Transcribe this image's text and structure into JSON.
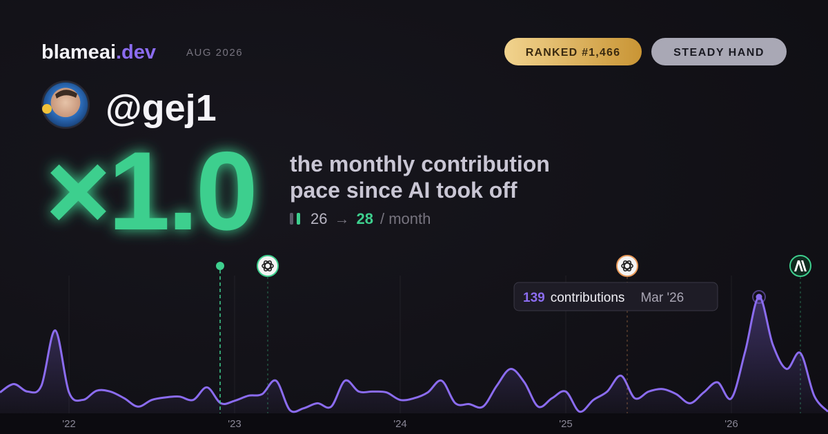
{
  "header": {
    "brand": "blameai",
    "brand_suffix": ".dev",
    "period": "AUG 2026",
    "rank_badge": "RANKED #1,466",
    "style_badge": "STEADY HAND",
    "handle": "@gej1"
  },
  "stat": {
    "multiplier": "×1.0",
    "caption_line1": "the monthly contribution",
    "caption_line2": "pace since AI took off",
    "before": 26,
    "arrow": "→",
    "after": 28,
    "unit": "/ month"
  },
  "chart_data": {
    "type": "line",
    "categories": [
      null,
      null,
      null,
      null,
      null,
      "'22",
      null,
      null,
      null,
      null,
      null,
      null,
      null,
      null,
      null,
      null,
      null,
      "'23",
      null,
      null,
      null,
      null,
      null,
      null,
      null,
      null,
      null,
      null,
      null,
      "'24",
      null,
      null,
      null,
      null,
      null,
      null,
      null,
      null,
      null,
      null,
      null,
      "'25",
      null,
      null,
      null,
      null,
      null,
      null,
      null,
      null,
      null,
      null,
      null,
      "'26",
      null,
      null,
      null,
      null,
      null,
      null,
      null
    ],
    "series": [
      {
        "name": "contributions",
        "color": "#8b6cf0",
        "values": [
          25,
          35,
          26,
          33,
          99,
          25,
          16,
          27,
          26,
          18,
          8,
          16,
          19,
          20,
          16,
          31,
          12,
          15,
          21,
          23,
          39,
          4,
          6,
          12,
          8,
          39,
          26,
          26,
          25,
          16,
          18,
          25,
          39,
          12,
          11,
          8,
          33,
          53,
          37,
          8,
          18,
          26,
          2,
          16,
          26,
          45,
          18,
          26,
          29,
          23,
          12,
          25,
          37,
          18,
          74,
          139,
          82,
          53,
          72,
          21,
          2
        ]
      }
    ],
    "ylim": [
      0,
      139
    ],
    "tooltip": {
      "label": "contributions",
      "date": "Mar '26"
    }
  }
}
